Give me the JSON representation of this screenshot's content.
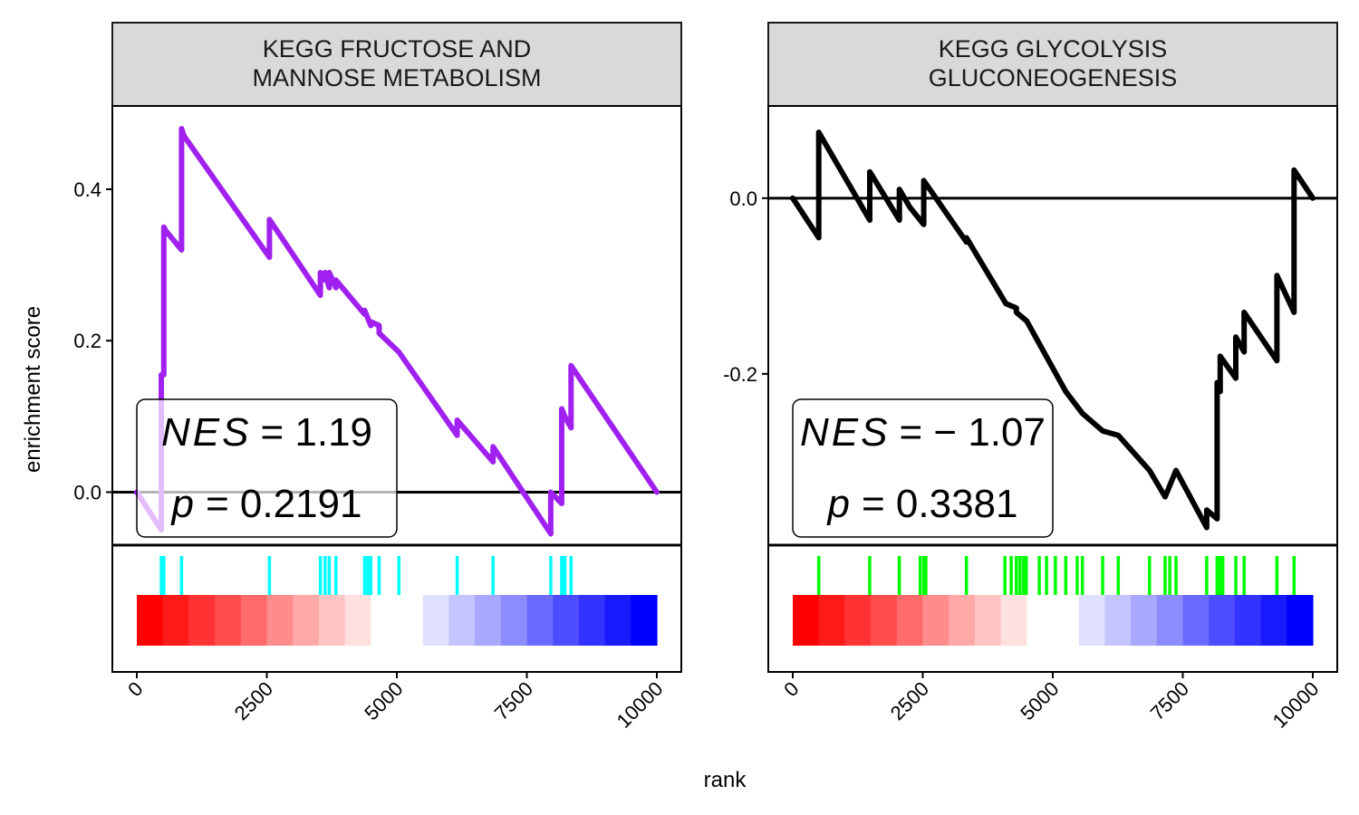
{
  "chart_data": {
    "type": "line",
    "ylabel": "enrichment score",
    "xlabel": "rank",
    "x_range": [
      0,
      10000
    ],
    "x_ticks": [
      0,
      2500,
      5000,
      7500,
      10000
    ],
    "x_tick_labels": [
      "0",
      "2500",
      "5000",
      "7500",
      "10000"
    ],
    "rank_gradient_colors": [
      "#ff0000",
      "#ff1a1a",
      "#ff3333",
      "#ff4d4d",
      "#ff6b6b",
      "#ff8c8c",
      "#ffa8a8",
      "#ffc4c4",
      "#ffe0e0",
      "#ffffff",
      "#ffffff",
      "#e0e0ff",
      "#c4c4ff",
      "#a8a8ff",
      "#8c8cff",
      "#6b6bff",
      "#4d4dff",
      "#3333ff",
      "#1a1aff",
      "#0000ff"
    ],
    "panels": [
      {
        "title": [
          "KEGG FRUCTOSE AND",
          "MANNOSE METABOLISM"
        ],
        "line_color": "#a020f0",
        "nes_label": "NES",
        "nes_value": "= 1.19",
        "p_label": "p",
        "p_value": "= 0.2191",
        "ylim": [
          -0.07,
          0.51
        ],
        "y_ticks": [
          0.0,
          0.2,
          0.4
        ],
        "y_tick_labels": [
          "0.0",
          "0.2",
          "0.4"
        ],
        "hit_color": "#00ffff",
        "hits": [
          470,
          520,
          860,
          2550,
          3530,
          3620,
          3700,
          3830,
          4380,
          4440,
          4500,
          4660,
          5040,
          6160,
          6850,
          7960,
          8170,
          8230,
          8350
        ],
        "x": [
          0,
          470,
          470,
          520,
          520,
          560,
          860,
          860,
          910,
          2550,
          2550,
          3530,
          3530,
          3620,
          3620,
          3700,
          3700,
          3830,
          3830,
          4380,
          4380,
          4440,
          4500,
          4500,
          4660,
          4660,
          5040,
          6160,
          6160,
          6850,
          6850,
          7960,
          7960,
          8170,
          8170,
          8230,
          8350,
          8350,
          10000
        ],
        "y": [
          0.0,
          -0.05,
          0.155,
          0.155,
          0.35,
          0.345,
          0.32,
          0.48,
          0.47,
          0.31,
          0.36,
          0.26,
          0.29,
          0.28,
          0.29,
          0.27,
          0.29,
          0.27,
          0.28,
          0.235,
          0.24,
          0.23,
          0.22,
          0.225,
          0.22,
          0.21,
          0.185,
          0.075,
          0.095,
          0.04,
          0.06,
          -0.055,
          0.0,
          -0.015,
          0.11,
          0.1,
          0.085,
          0.167,
          0.0
        ]
      },
      {
        "title": [
          "KEGG GLYCOLYSIS",
          "GLUCONEOGENESIS"
        ],
        "line_color": "#000000",
        "nes_label": "NES",
        "nes_value": "= − 1.07",
        "p_label": "p",
        "p_value": "= 0.3381",
        "ylim": [
          -0.395,
          0.105
        ],
        "y_ticks": [
          0.0,
          -0.2
        ],
        "y_tick_labels": [
          "0.0",
          "-0.2"
        ],
        "hit_color": "#00ff00",
        "hits": [
          500,
          1480,
          2050,
          2450,
          2520,
          2560,
          3340,
          4080,
          4200,
          4300,
          4370,
          4440,
          4490,
          4740,
          4880,
          5050,
          5250,
          5470,
          5570,
          5960,
          6260,
          6860,
          7160,
          7250,
          7370,
          7960,
          8160,
          8220,
          8270,
          8520,
          8680,
          9310,
          9640
        ],
        "x": [
          0,
          500,
          500,
          1480,
          1480,
          2050,
          2050,
          2250,
          2520,
          2520,
          3340,
          3340,
          4100,
          4300,
          4300,
          4500,
          5250,
          5570,
          5960,
          6260,
          6860,
          7160,
          7370,
          7960,
          7960,
          8160,
          8160,
          8220,
          8220,
          8520,
          8520,
          8680,
          8680,
          9310,
          9310,
          9640,
          9640,
          10000
        ],
        "y": [
          0.0,
          -0.045,
          0.075,
          -0.025,
          0.03,
          -0.025,
          0.01,
          -0.01,
          -0.03,
          0.02,
          -0.05,
          -0.045,
          -0.12,
          -0.125,
          -0.13,
          -0.14,
          -0.22,
          -0.245,
          -0.265,
          -0.27,
          -0.31,
          -0.34,
          -0.31,
          -0.375,
          -0.355,
          -0.365,
          -0.21,
          -0.22,
          -0.18,
          -0.205,
          -0.158,
          -0.175,
          -0.13,
          -0.185,
          -0.088,
          -0.13,
          0.032,
          0.0
        ]
      }
    ]
  }
}
